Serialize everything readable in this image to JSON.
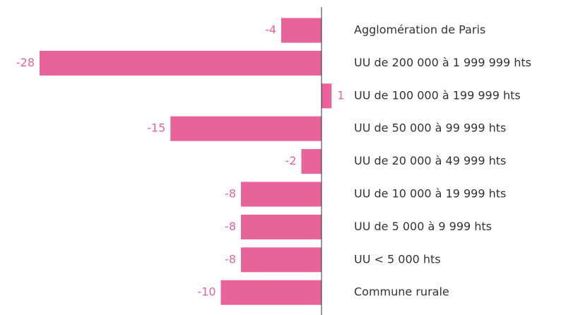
{
  "chart_data": {
    "type": "barh",
    "categories": [
      "Agglomération de Paris",
      "UU de 200 000 à 1 999 999 hts",
      "UU de 100 000 à 199 999 hts",
      "UU de 50 000 à 99 999 hts",
      "UU de 20 000 à 49 999 hts",
      "UU de 10 000 à 19 999 hts",
      "UU de 5 000 à 9 999 hts",
      "UU < 5 000 hts",
      "Commune rurale"
    ],
    "values": [
      -4,
      -28,
      1,
      -15,
      -2,
      -8,
      -8,
      -8,
      -10
    ],
    "color": "#e8629c"
  }
}
